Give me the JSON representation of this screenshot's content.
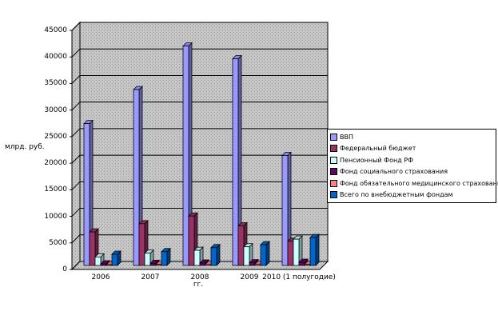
{
  "window": {
    "background": "#ffffff"
  },
  "chart_data": {
    "type": "bar",
    "projection": "3d-column",
    "title": "",
    "xlabel": "гг.",
    "ylabel": "млрд. руб.",
    "categories": [
      "2006",
      "2007",
      "2008",
      "2009",
      "2010 (1 полугодие)"
    ],
    "series": [
      {
        "name": "ВВП",
        "color": "#9999FF",
        "values": [
          26700,
          33100,
          41300,
          38900,
          20700
        ]
      },
      {
        "name": "Федеральный бюджет",
        "color": "#993366",
        "values": [
          6300,
          7850,
          9300,
          7450,
          4550
        ]
      },
      {
        "name": "Пенсионный Фонд РФ",
        "color": "#CCFFFF",
        "values": [
          1600,
          2300,
          2850,
          3500,
          4950
        ]
      },
      {
        "name": "Фонд социального страхования",
        "color": "#660066",
        "values": [
          300,
          400,
          450,
          500,
          600
        ]
      },
      {
        "name": "Фонд обязательного медицинского страхования",
        "color": "#FF8080",
        "values": [
          150,
          200,
          250,
          250,
          200
        ]
      },
      {
        "name": "Всего по внебюджетным фондам",
        "color": "#0066CC",
        "values": [
          2100,
          2600,
          3350,
          3900,
          5250
        ]
      }
    ],
    "ylim": [
      0,
      45000
    ],
    "ytick_step": 5000,
    "grid": true,
    "legend_position": "right",
    "wall_color": "#c6c6c6",
    "wall_dot_color": "#999999",
    "gridline_color": "#000000",
    "bar_border_color": "#000000"
  }
}
